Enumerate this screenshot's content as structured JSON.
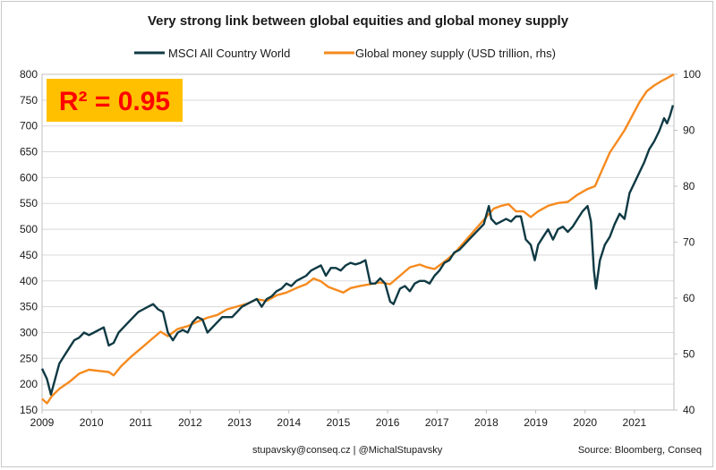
{
  "chart_data": {
    "type": "line",
    "title": "Very strong link between global equities and global money supply",
    "annotation": "R² = 0.95",
    "annotation_bg": "#ffc000",
    "annotation_color": "#ff0000",
    "footer_left": "stupavsky@conseq.cz  |  @MichalStupavsky",
    "footer_right": "Source: Bloomberg, Conseq",
    "x_ticks": [
      "2009",
      "2010",
      "2011",
      "2012",
      "2013",
      "2014",
      "2015",
      "2016",
      "2017",
      "2018",
      "2019",
      "2020",
      "2021"
    ],
    "xlim": [
      2009.0,
      2021.8
    ],
    "y_left": {
      "ticks": [
        "150",
        "200",
        "250",
        "300",
        "350",
        "400",
        "450",
        "500",
        "550",
        "600",
        "650",
        "700",
        "750",
        "800"
      ],
      "ylim": [
        150,
        800
      ]
    },
    "y_right": {
      "ticks": [
        "40",
        "50",
        "60",
        "70",
        "80",
        "90",
        "100"
      ],
      "ylim": [
        40,
        100
      ]
    },
    "grid": true,
    "legend_position": "top",
    "series": [
      {
        "name": "MSCI All Country World",
        "axis": "left",
        "color": "#0f3a44",
        "points": [
          [
            2009.0,
            230
          ],
          [
            2009.1,
            210
          ],
          [
            2009.18,
            180
          ],
          [
            2009.25,
            205
          ],
          [
            2009.35,
            240
          ],
          [
            2009.45,
            255
          ],
          [
            2009.55,
            270
          ],
          [
            2009.65,
            285
          ],
          [
            2009.75,
            290
          ],
          [
            2009.85,
            300
          ],
          [
            2009.95,
            295
          ],
          [
            2010.05,
            300
          ],
          [
            2010.15,
            305
          ],
          [
            2010.25,
            310
          ],
          [
            2010.35,
            275
          ],
          [
            2010.45,
            280
          ],
          [
            2010.55,
            300
          ],
          [
            2010.65,
            310
          ],
          [
            2010.75,
            320
          ],
          [
            2010.85,
            330
          ],
          [
            2010.95,
            340
          ],
          [
            2011.05,
            345
          ],
          [
            2011.15,
            350
          ],
          [
            2011.25,
            355
          ],
          [
            2011.35,
            345
          ],
          [
            2011.45,
            340
          ],
          [
            2011.55,
            300
          ],
          [
            2011.65,
            285
          ],
          [
            2011.75,
            300
          ],
          [
            2011.85,
            305
          ],
          [
            2011.95,
            300
          ],
          [
            2012.05,
            320
          ],
          [
            2012.15,
            330
          ],
          [
            2012.25,
            325
          ],
          [
            2012.35,
            300
          ],
          [
            2012.45,
            310
          ],
          [
            2012.55,
            320
          ],
          [
            2012.65,
            330
          ],
          [
            2012.75,
            330
          ],
          [
            2012.85,
            330
          ],
          [
            2012.95,
            340
          ],
          [
            2013.05,
            350
          ],
          [
            2013.15,
            355
          ],
          [
            2013.25,
            360
          ],
          [
            2013.35,
            365
          ],
          [
            2013.45,
            350
          ],
          [
            2013.55,
            365
          ],
          [
            2013.65,
            370
          ],
          [
            2013.75,
            380
          ],
          [
            2013.85,
            385
          ],
          [
            2013.95,
            395
          ],
          [
            2014.05,
            390
          ],
          [
            2014.15,
            400
          ],
          [
            2014.25,
            405
          ],
          [
            2014.35,
            410
          ],
          [
            2014.45,
            420
          ],
          [
            2014.55,
            425
          ],
          [
            2014.65,
            430
          ],
          [
            2014.75,
            410
          ],
          [
            2014.85,
            425
          ],
          [
            2014.95,
            425
          ],
          [
            2015.05,
            420
          ],
          [
            2015.15,
            430
          ],
          [
            2015.25,
            435
          ],
          [
            2015.35,
            432
          ],
          [
            2015.45,
            435
          ],
          [
            2015.55,
            440
          ],
          [
            2015.65,
            395
          ],
          [
            2015.75,
            395
          ],
          [
            2015.85,
            405
          ],
          [
            2015.95,
            395
          ],
          [
            2016.05,
            360
          ],
          [
            2016.12,
            355
          ],
          [
            2016.25,
            385
          ],
          [
            2016.35,
            390
          ],
          [
            2016.45,
            380
          ],
          [
            2016.55,
            395
          ],
          [
            2016.65,
            400
          ],
          [
            2016.75,
            400
          ],
          [
            2016.85,
            395
          ],
          [
            2016.95,
            410
          ],
          [
            2017.05,
            420
          ],
          [
            2017.15,
            435
          ],
          [
            2017.25,
            440
          ],
          [
            2017.35,
            455
          ],
          [
            2017.45,
            460
          ],
          [
            2017.55,
            470
          ],
          [
            2017.65,
            480
          ],
          [
            2017.75,
            490
          ],
          [
            2017.85,
            500
          ],
          [
            2017.95,
            510
          ],
          [
            2018.05,
            545
          ],
          [
            2018.1,
            520
          ],
          [
            2018.2,
            510
          ],
          [
            2018.3,
            515
          ],
          [
            2018.4,
            520
          ],
          [
            2018.5,
            515
          ],
          [
            2018.6,
            525
          ],
          [
            2018.7,
            525
          ],
          [
            2018.8,
            480
          ],
          [
            2018.9,
            470
          ],
          [
            2018.98,
            440
          ],
          [
            2019.05,
            470
          ],
          [
            2019.15,
            485
          ],
          [
            2019.25,
            500
          ],
          [
            2019.35,
            480
          ],
          [
            2019.45,
            500
          ],
          [
            2019.55,
            505
          ],
          [
            2019.65,
            495
          ],
          [
            2019.75,
            505
          ],
          [
            2019.85,
            520
          ],
          [
            2019.95,
            535
          ],
          [
            2020.05,
            545
          ],
          [
            2020.12,
            515
          ],
          [
            2020.18,
            420
          ],
          [
            2020.22,
            385
          ],
          [
            2020.3,
            440
          ],
          [
            2020.4,
            470
          ],
          [
            2020.5,
            485
          ],
          [
            2020.6,
            510
          ],
          [
            2020.7,
            530
          ],
          [
            2020.8,
            520
          ],
          [
            2020.9,
            570
          ],
          [
            2021.0,
            590
          ],
          [
            2021.1,
            610
          ],
          [
            2021.2,
            630
          ],
          [
            2021.3,
            655
          ],
          [
            2021.4,
            670
          ],
          [
            2021.5,
            690
          ],
          [
            2021.6,
            715
          ],
          [
            2021.66,
            705
          ],
          [
            2021.72,
            720
          ],
          [
            2021.78,
            740
          ]
        ]
      },
      {
        "name": "Global money supply (USD trillion, rhs)",
        "axis": "right",
        "color": "#f68a1e",
        "points": [
          [
            2009.0,
            42.0
          ],
          [
            2009.1,
            41.2
          ],
          [
            2009.2,
            42.5
          ],
          [
            2009.35,
            43.8
          ],
          [
            2009.55,
            45.0
          ],
          [
            2009.75,
            46.5
          ],
          [
            2009.95,
            47.2
          ],
          [
            2010.15,
            47.0
          ],
          [
            2010.35,
            46.8
          ],
          [
            2010.45,
            46.2
          ],
          [
            2010.6,
            47.8
          ],
          [
            2010.8,
            49.5
          ],
          [
            2011.0,
            51.0
          ],
          [
            2011.2,
            52.5
          ],
          [
            2011.4,
            54.0
          ],
          [
            2011.55,
            53.2
          ],
          [
            2011.75,
            54.5
          ],
          [
            2011.95,
            55.0
          ],
          [
            2012.15,
            55.8
          ],
          [
            2012.35,
            56.5
          ],
          [
            2012.55,
            57.0
          ],
          [
            2012.75,
            58.0
          ],
          [
            2012.95,
            58.5
          ],
          [
            2013.15,
            59.0
          ],
          [
            2013.35,
            59.8
          ],
          [
            2013.55,
            59.5
          ],
          [
            2013.75,
            60.5
          ],
          [
            2013.95,
            61.0
          ],
          [
            2014.15,
            61.8
          ],
          [
            2014.35,
            62.5
          ],
          [
            2014.5,
            63.5
          ],
          [
            2014.65,
            63.0
          ],
          [
            2014.8,
            62.0
          ],
          [
            2014.95,
            61.5
          ],
          [
            2015.1,
            61.0
          ],
          [
            2015.25,
            61.8
          ],
          [
            2015.45,
            62.2
          ],
          [
            2015.65,
            62.5
          ],
          [
            2015.85,
            62.8
          ],
          [
            2016.05,
            62.5
          ],
          [
            2016.25,
            64.0
          ],
          [
            2016.45,
            65.5
          ],
          [
            2016.65,
            66.0
          ],
          [
            2016.8,
            65.5
          ],
          [
            2016.95,
            65.2
          ],
          [
            2017.15,
            66.5
          ],
          [
            2017.35,
            68.0
          ],
          [
            2017.55,
            70.0
          ],
          [
            2017.75,
            72.0
          ],
          [
            2017.95,
            74.0
          ],
          [
            2018.15,
            76.0
          ],
          [
            2018.3,
            76.5
          ],
          [
            2018.45,
            76.8
          ],
          [
            2018.6,
            75.5
          ],
          [
            2018.75,
            75.5
          ],
          [
            2018.9,
            74.5
          ],
          [
            2019.05,
            75.5
          ],
          [
            2019.25,
            76.5
          ],
          [
            2019.45,
            77.0
          ],
          [
            2019.65,
            77.2
          ],
          [
            2019.85,
            78.5
          ],
          [
            2020.05,
            79.5
          ],
          [
            2020.2,
            80.0
          ],
          [
            2020.35,
            83.0
          ],
          [
            2020.5,
            86.0
          ],
          [
            2020.65,
            88.0
          ],
          [
            2020.8,
            90.0
          ],
          [
            2020.95,
            92.5
          ],
          [
            2021.1,
            95.0
          ],
          [
            2021.25,
            97.0
          ],
          [
            2021.4,
            98.0
          ],
          [
            2021.55,
            98.8
          ],
          [
            2021.7,
            99.5
          ],
          [
            2021.8,
            100.0
          ]
        ]
      }
    ]
  }
}
